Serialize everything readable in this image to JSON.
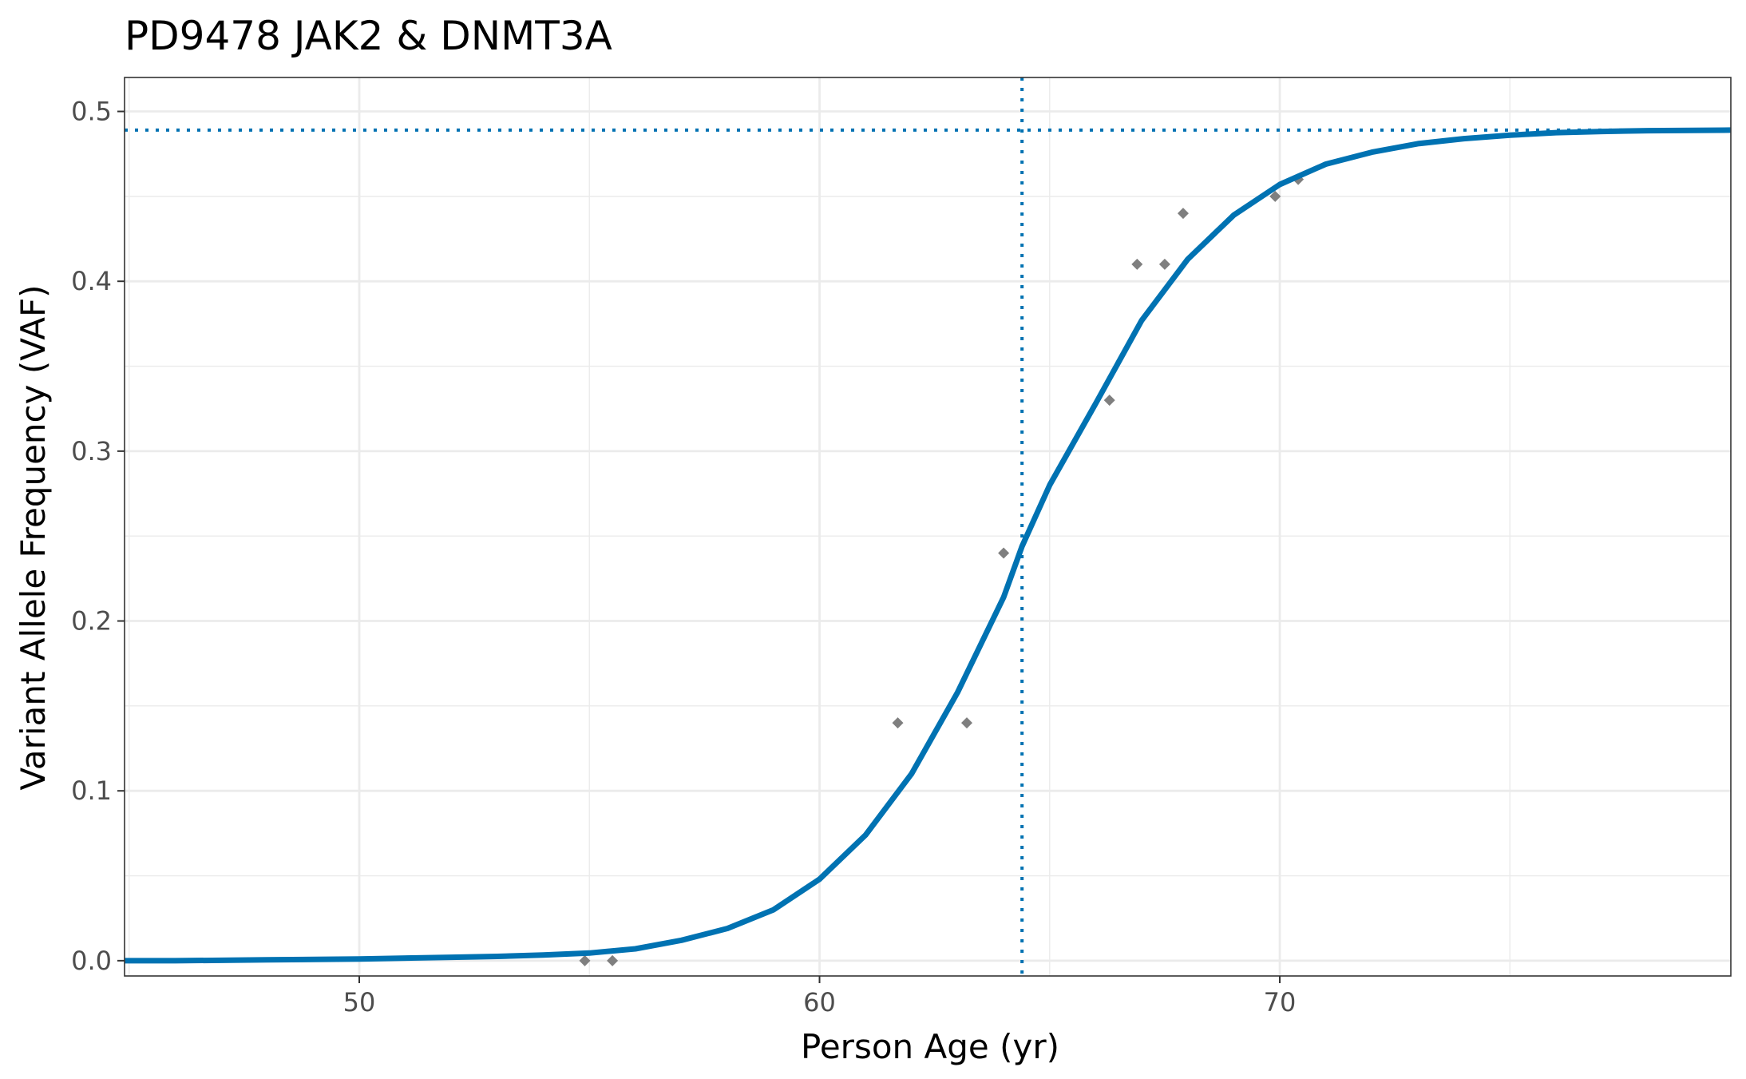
{
  "chart_data": {
    "type": "line",
    "title": "PD9478 JAK2 & DNMT3A",
    "xlabel": "Person Age (yr)",
    "ylabel": "Variant Allele Frequency (VAF)",
    "xlim": [
      44.9,
      79.8
    ],
    "ylim": [
      -0.009,
      0.52
    ],
    "x_ticks": [
      50,
      60,
      70
    ],
    "x_tick_labels": [
      "50",
      "60",
      "70"
    ],
    "y_ticks": [
      0,
      0.1,
      0.2,
      0.3,
      0.4,
      0.5
    ],
    "y_tick_labels": [
      "0.0",
      "0.1",
      "0.2",
      "0.3",
      "0.4",
      "0.5"
    ],
    "grid": true,
    "legend": "none",
    "colors": {
      "curve": "#0072B2",
      "points": "#7f7f7f",
      "reference": "#0072B2",
      "grid": "#ebebeb"
    },
    "series": [
      {
        "type": "scatter",
        "x": [
          54.9,
          55.5,
          61.7,
          63.2,
          64.0,
          66.3,
          66.9,
          67.5,
          67.9,
          69.9,
          70.4
        ],
        "y": [
          0.0,
          0.0,
          0.14,
          0.14,
          0.24,
          0.33,
          0.41,
          0.41,
          0.44,
          0.45,
          0.46
        ]
      },
      {
        "type": "line",
        "x": [
          44.9,
          46.0,
          48.0,
          50.0,
          52.0,
          53.0,
          54.0,
          55.0,
          56.0,
          57.0,
          58.0,
          59.0,
          60.0,
          61.0,
          62.0,
          63.0,
          64.0,
          64.4,
          65.0,
          66.0,
          67.0,
          68.0,
          69.0,
          70.0,
          71.0,
          72.0,
          73.0,
          74.0,
          75.0,
          76.0,
          77.0,
          78.0,
          79.8
        ],
        "y": [
          0.0,
          0.0,
          0.0005,
          0.001,
          0.002,
          0.0025,
          0.0033,
          0.0045,
          0.007,
          0.012,
          0.019,
          0.03,
          0.048,
          0.074,
          0.11,
          0.158,
          0.214,
          0.244,
          0.28,
          0.328,
          0.377,
          0.413,
          0.439,
          0.457,
          0.469,
          0.476,
          0.481,
          0.484,
          0.486,
          0.4875,
          0.4882,
          0.4887,
          0.489
        ]
      }
    ],
    "reference_lines": {
      "vertical_x": 64.4,
      "horizontal_y": 0.489
    }
  }
}
